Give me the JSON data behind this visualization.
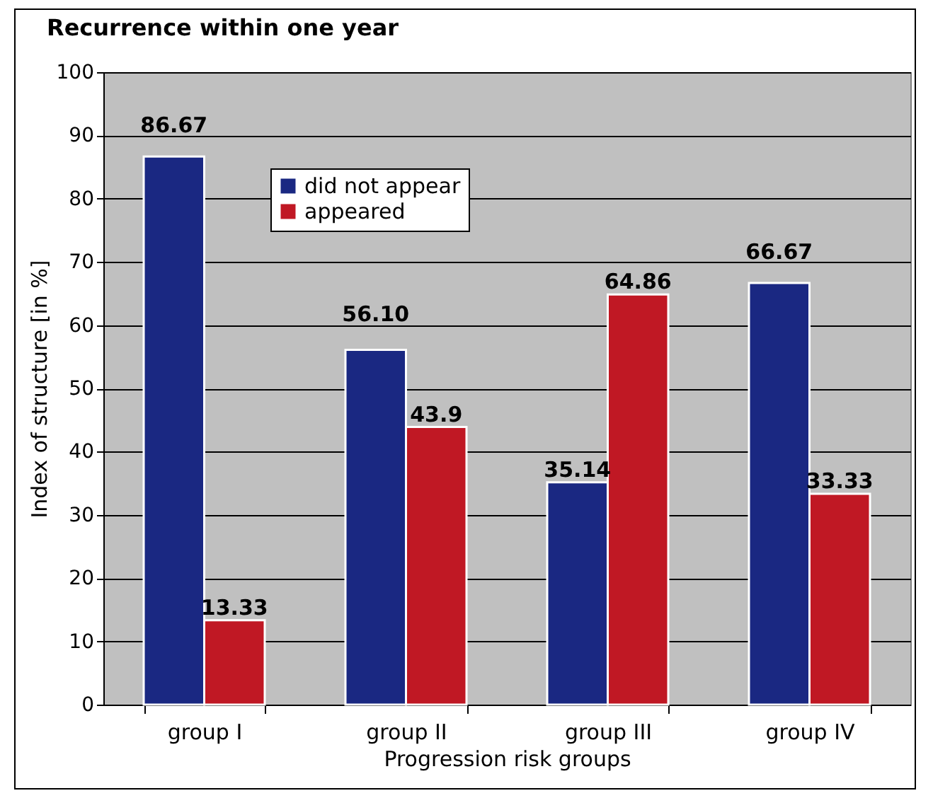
{
  "chart_data": {
    "type": "bar",
    "title": "Recurrence within one year",
    "xlabel": "Progression risk groups",
    "ylabel": "Index of structure [in %]",
    "categories": [
      "group I",
      "group II",
      "group III",
      "group IV"
    ],
    "series": [
      {
        "name": "did not appear",
        "color": "#1a2882",
        "values": [
          86.67,
          56.1,
          35.14,
          66.67
        ],
        "value_labels": [
          "86.67",
          "56.10",
          "35.14",
          "66.67"
        ]
      },
      {
        "name": "appeared",
        "color": "#c01824",
        "values": [
          13.33,
          43.9,
          64.86,
          33.33
        ],
        "value_labels": [
          "13.33",
          "43.9",
          "64.86",
          "33.33"
        ]
      }
    ],
    "ylim": [
      0,
      100
    ],
    "yticks": [
      0,
      10,
      20,
      30,
      40,
      50,
      60,
      70,
      80,
      90,
      100
    ],
    "grid": "y",
    "legend": "top left"
  }
}
